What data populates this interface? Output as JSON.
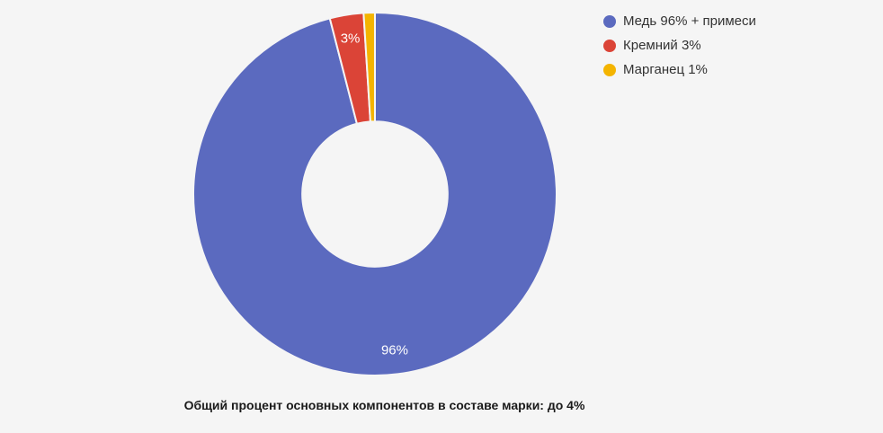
{
  "page": {
    "background_color": "#f5f5f5"
  },
  "chart_data": {
    "type": "pie",
    "donut": true,
    "pie_hole": 0.4,
    "start_angle_deg": 0,
    "direction": "clockwise",
    "legend_position": "top-right",
    "grid": false,
    "total": 100,
    "slice_label_color": "#ffffff",
    "slice_separator_color": "#f5f5f5",
    "slices": [
      {
        "label": "Медь 96% + примеси",
        "value": 96,
        "color": "#5b6abf",
        "slice_label": "96%",
        "show_slice_label": true
      },
      {
        "label": "Кремний 3%",
        "value": 3,
        "color": "#db4437",
        "slice_label": "3%",
        "show_slice_label": true
      },
      {
        "label": "Марганец 1%",
        "value": 1,
        "color": "#f4b400",
        "slice_label": "",
        "show_slice_label": false
      }
    ]
  },
  "caption": {
    "text": "Общий процент основных компонентов в составе марки: до 4%"
  }
}
